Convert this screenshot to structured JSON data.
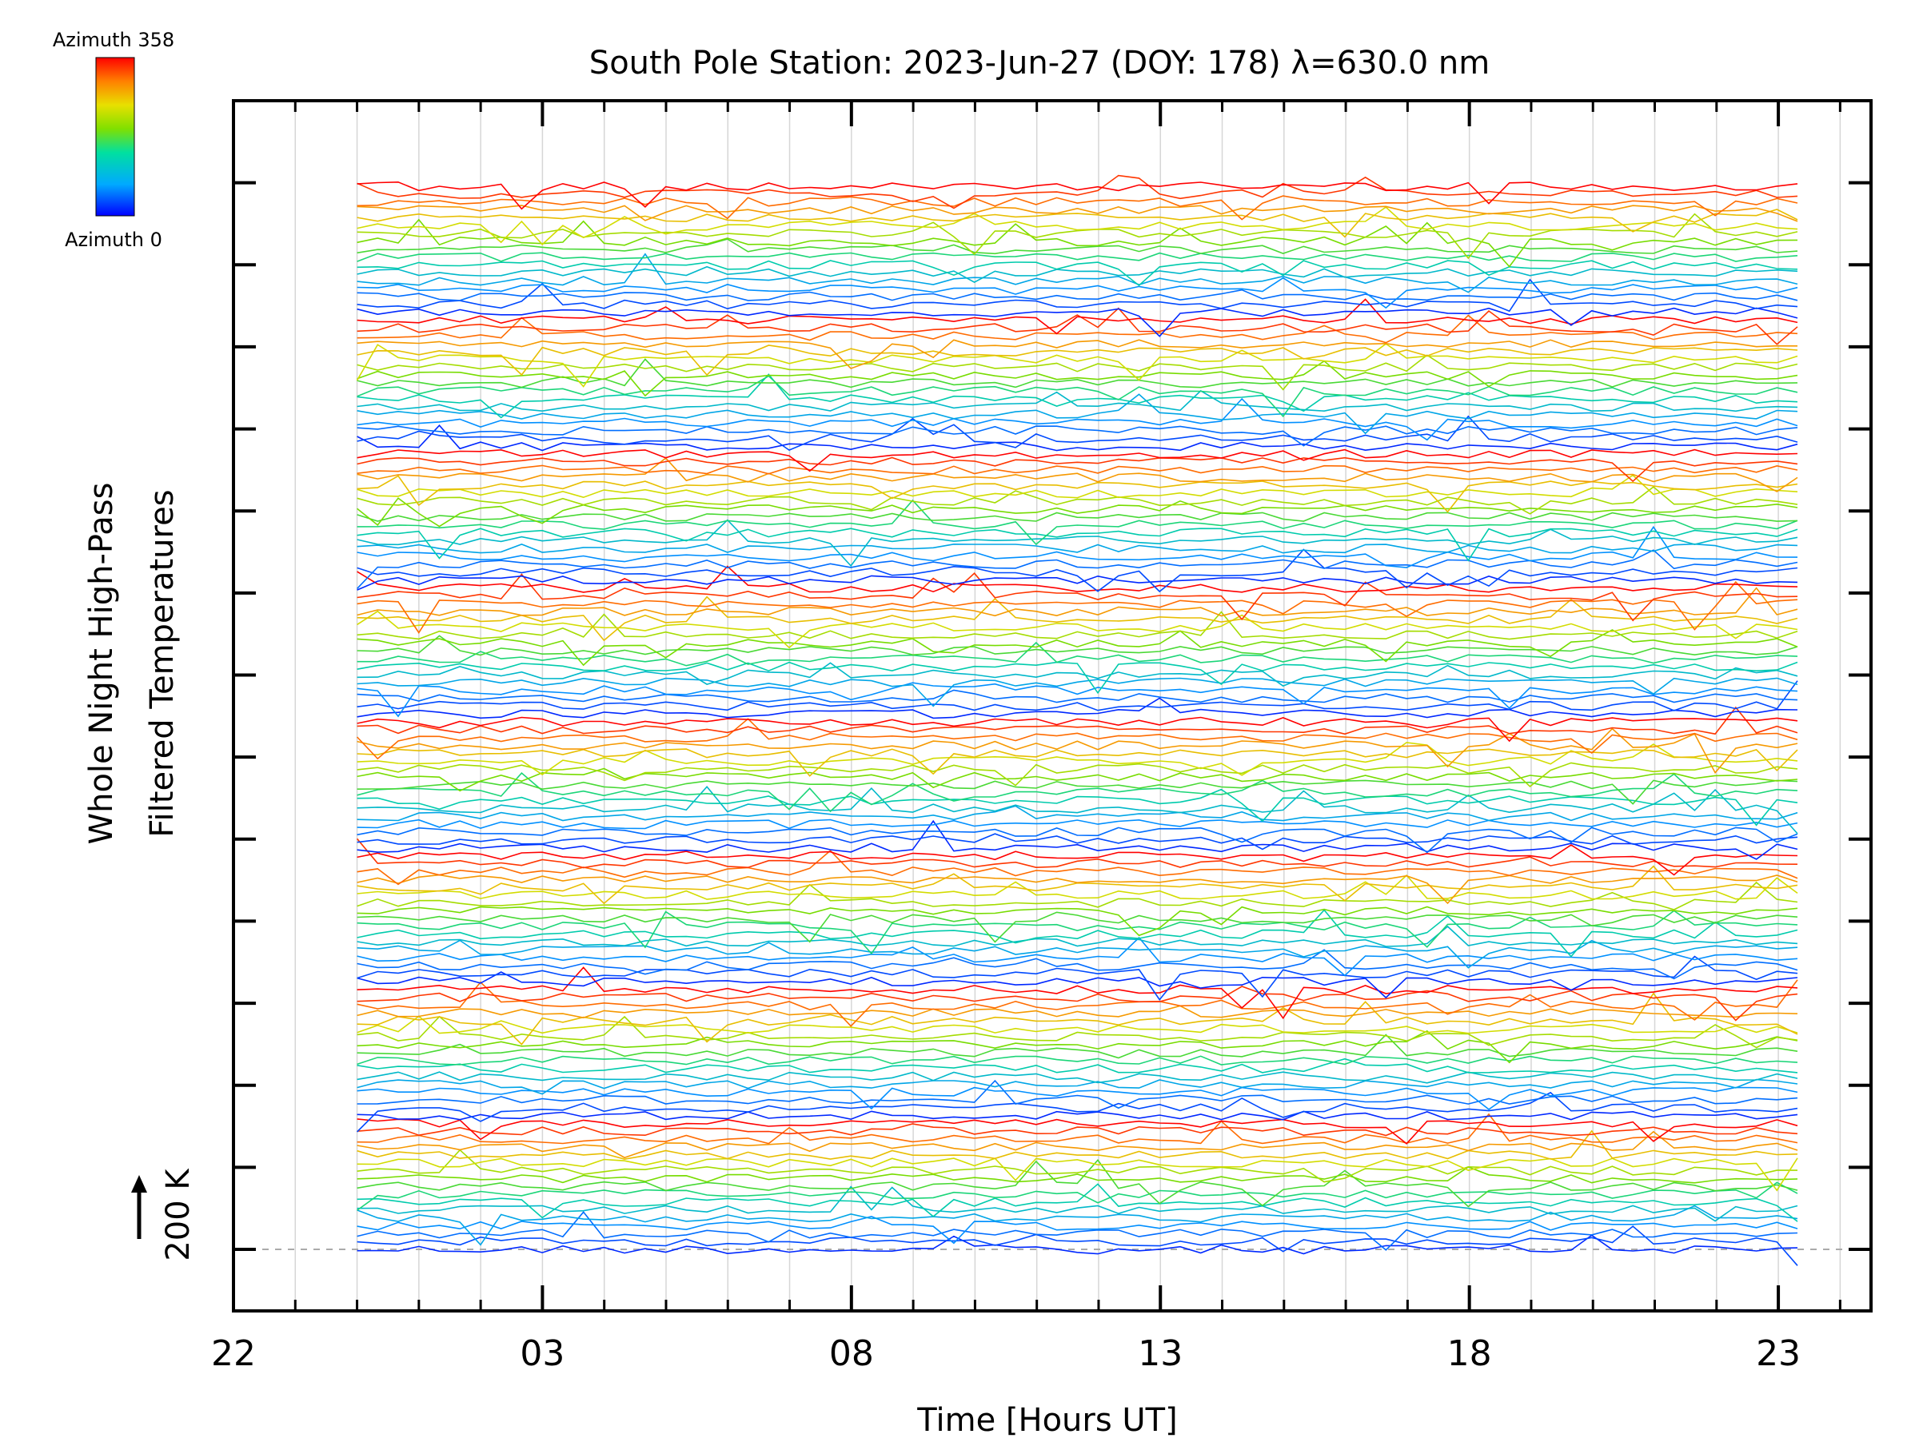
{
  "chart_data": {
    "type": "line",
    "title": "South Pole Station: 2023-Jun-27 (DOY: 178) λ=630.0 nm",
    "xlabel": "Time [Hours UT]",
    "ylabel_lines": [
      "Whole Night High-Pass",
      "Filtered Temperatures"
    ],
    "scale_label": "200 K",
    "xlim": [
      22,
      48.5
    ],
    "x_tick_positions": [
      22,
      27,
      32,
      37,
      42,
      47
    ],
    "x_tick_labels": [
      "22",
      "03",
      "08",
      "13",
      "18",
      "23"
    ],
    "x_minor_step": 1,
    "grid": "vertical, every hour",
    "legend": {
      "top_label": "Azimuth 358",
      "bottom_label": "Azimuth 0",
      "colormap": "rainbow (blue = 0°, red = 358°)",
      "placement": "top-left"
    },
    "series_summary": {
      "count": 136,
      "time_start": 24,
      "time_end": 47.6,
      "cadence_hours": 0.333,
      "offset_between_series": 8,
      "azimuth_cycle_length": 17,
      "zero_baseline": "dashed line at bottom series"
    }
  }
}
